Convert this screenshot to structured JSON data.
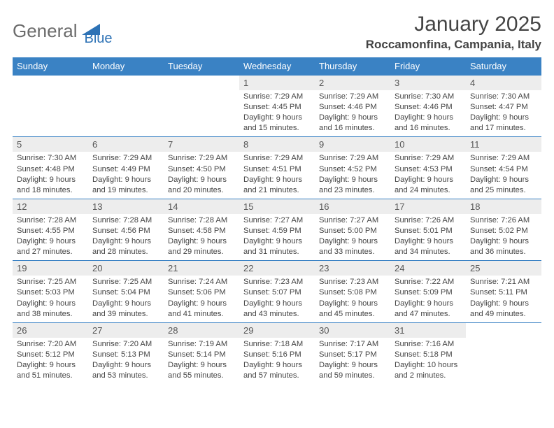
{
  "brand": {
    "text1": "General",
    "text2": "Blue"
  },
  "title": "January 2025",
  "location": "Roccamonfina, Campania, Italy",
  "colors": {
    "accent": "#3a82c4",
    "daybg": "#ededed"
  },
  "weekdays": [
    "Sunday",
    "Monday",
    "Tuesday",
    "Wednesday",
    "Thursday",
    "Friday",
    "Saturday"
  ],
  "weeks": [
    [
      null,
      null,
      null,
      {
        "n": "1",
        "sr": "7:29 AM",
        "ss": "4:45 PM",
        "dl": "9 hours and 15 minutes."
      },
      {
        "n": "2",
        "sr": "7:29 AM",
        "ss": "4:46 PM",
        "dl": "9 hours and 16 minutes."
      },
      {
        "n": "3",
        "sr": "7:30 AM",
        "ss": "4:46 PM",
        "dl": "9 hours and 16 minutes."
      },
      {
        "n": "4",
        "sr": "7:30 AM",
        "ss": "4:47 PM",
        "dl": "9 hours and 17 minutes."
      }
    ],
    [
      {
        "n": "5",
        "sr": "7:30 AM",
        "ss": "4:48 PM",
        "dl": "9 hours and 18 minutes."
      },
      {
        "n": "6",
        "sr": "7:29 AM",
        "ss": "4:49 PM",
        "dl": "9 hours and 19 minutes."
      },
      {
        "n": "7",
        "sr": "7:29 AM",
        "ss": "4:50 PM",
        "dl": "9 hours and 20 minutes."
      },
      {
        "n": "8",
        "sr": "7:29 AM",
        "ss": "4:51 PM",
        "dl": "9 hours and 21 minutes."
      },
      {
        "n": "9",
        "sr": "7:29 AM",
        "ss": "4:52 PM",
        "dl": "9 hours and 23 minutes."
      },
      {
        "n": "10",
        "sr": "7:29 AM",
        "ss": "4:53 PM",
        "dl": "9 hours and 24 minutes."
      },
      {
        "n": "11",
        "sr": "7:29 AM",
        "ss": "4:54 PM",
        "dl": "9 hours and 25 minutes."
      }
    ],
    [
      {
        "n": "12",
        "sr": "7:28 AM",
        "ss": "4:55 PM",
        "dl": "9 hours and 27 minutes."
      },
      {
        "n": "13",
        "sr": "7:28 AM",
        "ss": "4:56 PM",
        "dl": "9 hours and 28 minutes."
      },
      {
        "n": "14",
        "sr": "7:28 AM",
        "ss": "4:58 PM",
        "dl": "9 hours and 29 minutes."
      },
      {
        "n": "15",
        "sr": "7:27 AM",
        "ss": "4:59 PM",
        "dl": "9 hours and 31 minutes."
      },
      {
        "n": "16",
        "sr": "7:27 AM",
        "ss": "5:00 PM",
        "dl": "9 hours and 33 minutes."
      },
      {
        "n": "17",
        "sr": "7:26 AM",
        "ss": "5:01 PM",
        "dl": "9 hours and 34 minutes."
      },
      {
        "n": "18",
        "sr": "7:26 AM",
        "ss": "5:02 PM",
        "dl": "9 hours and 36 minutes."
      }
    ],
    [
      {
        "n": "19",
        "sr": "7:25 AM",
        "ss": "5:03 PM",
        "dl": "9 hours and 38 minutes."
      },
      {
        "n": "20",
        "sr": "7:25 AM",
        "ss": "5:04 PM",
        "dl": "9 hours and 39 minutes."
      },
      {
        "n": "21",
        "sr": "7:24 AM",
        "ss": "5:06 PM",
        "dl": "9 hours and 41 minutes."
      },
      {
        "n": "22",
        "sr": "7:23 AM",
        "ss": "5:07 PM",
        "dl": "9 hours and 43 minutes."
      },
      {
        "n": "23",
        "sr": "7:23 AM",
        "ss": "5:08 PM",
        "dl": "9 hours and 45 minutes."
      },
      {
        "n": "24",
        "sr": "7:22 AM",
        "ss": "5:09 PM",
        "dl": "9 hours and 47 minutes."
      },
      {
        "n": "25",
        "sr": "7:21 AM",
        "ss": "5:11 PM",
        "dl": "9 hours and 49 minutes."
      }
    ],
    [
      {
        "n": "26",
        "sr": "7:20 AM",
        "ss": "5:12 PM",
        "dl": "9 hours and 51 minutes."
      },
      {
        "n": "27",
        "sr": "7:20 AM",
        "ss": "5:13 PM",
        "dl": "9 hours and 53 minutes."
      },
      {
        "n": "28",
        "sr": "7:19 AM",
        "ss": "5:14 PM",
        "dl": "9 hours and 55 minutes."
      },
      {
        "n": "29",
        "sr": "7:18 AM",
        "ss": "5:16 PM",
        "dl": "9 hours and 57 minutes."
      },
      {
        "n": "30",
        "sr": "7:17 AM",
        "ss": "5:17 PM",
        "dl": "9 hours and 59 minutes."
      },
      {
        "n": "31",
        "sr": "7:16 AM",
        "ss": "5:18 PM",
        "dl": "10 hours and 2 minutes."
      },
      null
    ]
  ],
  "labels": {
    "sunrise": "Sunrise:",
    "sunset": "Sunset:",
    "daylight": "Daylight:"
  }
}
